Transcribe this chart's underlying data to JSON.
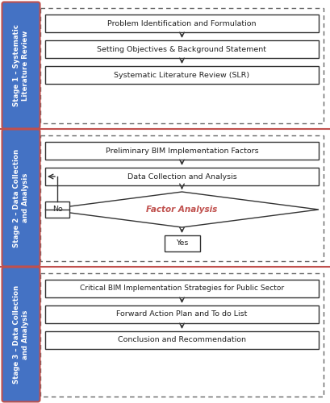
{
  "bg_color": "#ffffff",
  "stage_bg_color": "#4472c4",
  "stage_border_color": "#c0504d",
  "stage_text_color": "#ffffff",
  "box_bg_color": "#ffffff",
  "box_border_color": "#333333",
  "dashed_border_color": "#666666",
  "arrow_color": "#333333",
  "red_line_color": "#c0504d",
  "diamond_text_color": "#c0504d",
  "stage1_label": "Stage 1 – Systematic\nLiterature Review",
  "stage2_label": "Stage 2 – Data Collection\nand Analysis",
  "stage3_label": "Stage 3 – Data Collection\nand Analysis",
  "stage1_boxes": [
    "Problem Identification and Formulation",
    "Setting Objectives & Background Statement",
    "Systematic Literature Review (SLR)"
  ],
  "stage2_boxes_rect": [
    "Preliminary BIM Implementation Factors",
    "Data Collection and Analysis"
  ],
  "stage2_diamond": "Factor Analysis",
  "stage2_yes": "Yes",
  "stage2_no": "No",
  "stage3_boxes": [
    "Critical BIM Implementation Strategies for Public Sector",
    "Forward Action Plan and To do List",
    "Conclusion and Recommendation"
  ]
}
